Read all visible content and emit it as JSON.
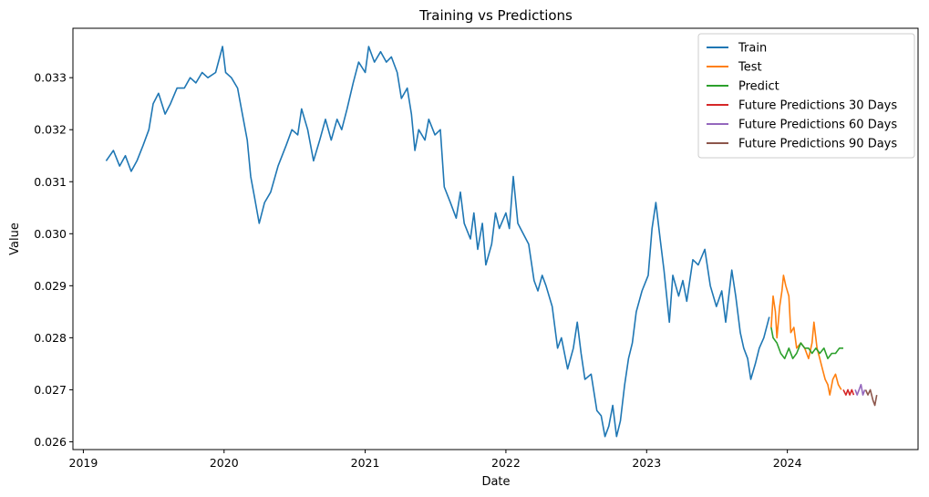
{
  "chart_data": {
    "type": "line",
    "title": "Training vs Predictions",
    "xlabel": "Date",
    "ylabel": "Value",
    "x_range": [
      "2018-12-05",
      "2024-12-05"
    ],
    "ylim": [
      0.02585,
      0.03395
    ],
    "x_ticks": [
      "2019",
      "2020",
      "2021",
      "2022",
      "2023",
      "2024"
    ],
    "y_ticks": [
      "0.026",
      "0.027",
      "0.028",
      "0.029",
      "0.030",
      "0.031",
      "0.032",
      "0.033"
    ],
    "grid": false,
    "legend_position": "top-right",
    "series": [
      {
        "name": "Train",
        "color": "#1f77b4",
        "points": [
          [
            "2019-03-01",
            0.0314
          ],
          [
            "2019-03-20",
            0.0316
          ],
          [
            "2019-04-05",
            0.0313
          ],
          [
            "2019-04-20",
            0.0315
          ],
          [
            "2019-05-05",
            0.0312
          ],
          [
            "2019-05-20",
            0.0314
          ],
          [
            "2019-06-05",
            0.0317
          ],
          [
            "2019-06-20",
            0.032
          ],
          [
            "2019-07-01",
            0.0325
          ],
          [
            "2019-07-15",
            0.0327
          ],
          [
            "2019-08-01",
            0.0323
          ],
          [
            "2019-08-15",
            0.0325
          ],
          [
            "2019-09-01",
            0.0328
          ],
          [
            "2019-09-20",
            0.0328
          ],
          [
            "2019-10-05",
            0.033
          ],
          [
            "2019-10-20",
            0.0329
          ],
          [
            "2019-11-05",
            0.0331
          ],
          [
            "2019-11-20",
            0.033
          ],
          [
            "2019-12-10",
            0.0331
          ],
          [
            "2019-12-28",
            0.0336
          ],
          [
            "2020-01-05",
            0.0331
          ],
          [
            "2020-01-20",
            0.033
          ],
          [
            "2020-02-05",
            0.0328
          ],
          [
            "2020-02-15",
            0.0324
          ],
          [
            "2020-03-01",
            0.0318
          ],
          [
            "2020-03-10",
            0.0311
          ],
          [
            "2020-03-20",
            0.0307
          ],
          [
            "2020-04-01",
            0.0302
          ],
          [
            "2020-04-15",
            0.0306
          ],
          [
            "2020-05-01",
            0.0308
          ],
          [
            "2020-05-20",
            0.0313
          ],
          [
            "2020-06-10",
            0.0317
          ],
          [
            "2020-06-25",
            0.032
          ],
          [
            "2020-07-10",
            0.0319
          ],
          [
            "2020-07-20",
            0.0324
          ],
          [
            "2020-08-05",
            0.032
          ],
          [
            "2020-08-20",
            0.0314
          ],
          [
            "2020-09-05",
            0.0318
          ],
          [
            "2020-09-20",
            0.0322
          ],
          [
            "2020-10-05",
            0.0318
          ],
          [
            "2020-10-20",
            0.0322
          ],
          [
            "2020-11-01",
            0.032
          ],
          [
            "2020-11-15",
            0.0324
          ],
          [
            "2020-12-01",
            0.0329
          ],
          [
            "2020-12-15",
            0.0333
          ],
          [
            "2021-01-01",
            0.0331
          ],
          [
            "2021-01-10",
            0.0336
          ],
          [
            "2021-01-25",
            0.0333
          ],
          [
            "2021-02-10",
            0.0335
          ],
          [
            "2021-02-25",
            0.0333
          ],
          [
            "2021-03-10",
            0.0334
          ],
          [
            "2021-03-25",
            0.0331
          ],
          [
            "2021-04-05",
            0.0326
          ],
          [
            "2021-04-20",
            0.0328
          ],
          [
            "2021-05-01",
            0.0323
          ],
          [
            "2021-05-10",
            0.0316
          ],
          [
            "2021-05-20",
            0.032
          ],
          [
            "2021-06-05",
            0.0318
          ],
          [
            "2021-06-15",
            0.0322
          ],
          [
            "2021-07-01",
            0.0319
          ],
          [
            "2021-07-15",
            0.032
          ],
          [
            "2021-07-25",
            0.0309
          ],
          [
            "2021-08-10",
            0.0306
          ],
          [
            "2021-08-25",
            0.0303
          ],
          [
            "2021-09-05",
            0.0308
          ],
          [
            "2021-09-15",
            0.0302
          ],
          [
            "2021-10-01",
            0.0299
          ],
          [
            "2021-10-10",
            0.0304
          ],
          [
            "2021-10-20",
            0.0297
          ],
          [
            "2021-11-01",
            0.0302
          ],
          [
            "2021-11-10",
            0.0294
          ],
          [
            "2021-11-25",
            0.0298
          ],
          [
            "2021-12-05",
            0.0304
          ],
          [
            "2021-12-15",
            0.0301
          ],
          [
            "2022-01-01",
            0.0304
          ],
          [
            "2022-01-10",
            0.0301
          ],
          [
            "2022-01-20",
            0.0311
          ],
          [
            "2022-02-01",
            0.0302
          ],
          [
            "2022-02-15",
            0.03
          ],
          [
            "2022-03-01",
            0.0298
          ],
          [
            "2022-03-15",
            0.0291
          ],
          [
            "2022-03-25",
            0.0289
          ],
          [
            "2022-04-05",
            0.0292
          ],
          [
            "2022-04-15",
            0.029
          ],
          [
            "2022-05-01",
            0.0286
          ],
          [
            "2022-05-15",
            0.0278
          ],
          [
            "2022-05-25",
            0.028
          ],
          [
            "2022-06-10",
            0.0274
          ],
          [
            "2022-06-25",
            0.0278
          ],
          [
            "2022-07-05",
            0.0283
          ],
          [
            "2022-07-15",
            0.0277
          ],
          [
            "2022-07-25",
            0.0272
          ],
          [
            "2022-08-10",
            0.0273
          ],
          [
            "2022-08-25",
            0.0266
          ],
          [
            "2022-09-05",
            0.0265
          ],
          [
            "2022-09-15",
            0.0261
          ],
          [
            "2022-09-25",
            0.0263
          ],
          [
            "2022-10-05",
            0.0267
          ],
          [
            "2022-10-15",
            0.0261
          ],
          [
            "2022-10-25",
            0.0264
          ],
          [
            "2022-11-05",
            0.0271
          ],
          [
            "2022-11-15",
            0.0276
          ],
          [
            "2022-11-25",
            0.0279
          ],
          [
            "2022-12-05",
            0.0285
          ],
          [
            "2022-12-20",
            0.0289
          ],
          [
            "2023-01-05",
            0.0292
          ],
          [
            "2023-01-15",
            0.0301
          ],
          [
            "2023-01-25",
            0.0306
          ],
          [
            "2023-02-05",
            0.0299
          ],
          [
            "2023-02-15",
            0.0293
          ],
          [
            "2023-03-01",
            0.0283
          ],
          [
            "2023-03-10",
            0.0292
          ],
          [
            "2023-03-25",
            0.0288
          ],
          [
            "2023-04-05",
            0.0291
          ],
          [
            "2023-04-15",
            0.0287
          ],
          [
            "2023-05-01",
            0.0295
          ],
          [
            "2023-05-15",
            0.0294
          ],
          [
            "2023-06-01",
            0.0297
          ],
          [
            "2023-06-15",
            0.029
          ],
          [
            "2023-07-01",
            0.0286
          ],
          [
            "2023-07-15",
            0.0289
          ],
          [
            "2023-07-25",
            0.0283
          ],
          [
            "2023-08-10",
            0.0293
          ],
          [
            "2023-08-20",
            0.0288
          ],
          [
            "2023-09-01",
            0.0281
          ],
          [
            "2023-09-10",
            0.0278
          ],
          [
            "2023-09-20",
            0.0276
          ],
          [
            "2023-09-28",
            0.0272
          ],
          [
            "2023-10-10",
            0.0275
          ],
          [
            "2023-10-20",
            0.0278
          ],
          [
            "2023-11-01",
            0.028
          ],
          [
            "2023-11-15",
            0.0284
          ]
        ]
      },
      {
        "name": "Test",
        "color": "#ff7f0e",
        "points": [
          [
            "2023-11-20",
            0.0282
          ],
          [
            "2023-11-25",
            0.0288
          ],
          [
            "2023-12-01",
            0.0285
          ],
          [
            "2023-12-05",
            0.028
          ],
          [
            "2023-12-12",
            0.0286
          ],
          [
            "2023-12-18",
            0.0289
          ],
          [
            "2023-12-22",
            0.0292
          ],
          [
            "2023-12-28",
            0.029
          ],
          [
            "2024-01-05",
            0.0288
          ],
          [
            "2024-01-10",
            0.0281
          ],
          [
            "2024-01-18",
            0.0282
          ],
          [
            "2024-01-25",
            0.0278
          ],
          [
            "2024-02-05",
            0.0279
          ],
          [
            "2024-02-15",
            0.0278
          ],
          [
            "2024-02-25",
            0.0276
          ],
          [
            "2024-03-05",
            0.0279
          ],
          [
            "2024-03-10",
            0.0283
          ],
          [
            "2024-03-18",
            0.0278
          ],
          [
            "2024-03-25",
            0.0276
          ],
          [
            "2024-04-01",
            0.0274
          ],
          [
            "2024-04-08",
            0.0272
          ],
          [
            "2024-04-15",
            0.0271
          ],
          [
            "2024-04-20",
            0.0269
          ],
          [
            "2024-04-28",
            0.0272
          ],
          [
            "2024-05-05",
            0.0273
          ],
          [
            "2024-05-12",
            0.0271
          ],
          [
            "2024-05-20",
            0.027
          ]
        ]
      },
      {
        "name": "Predict",
        "color": "#2ca02c",
        "points": [
          [
            "2023-11-20",
            0.0282
          ],
          [
            "2023-11-25",
            0.028
          ],
          [
            "2023-12-05",
            0.0279
          ],
          [
            "2023-12-15",
            0.0277
          ],
          [
            "2023-12-25",
            0.0276
          ],
          [
            "2024-01-05",
            0.0278
          ],
          [
            "2024-01-15",
            0.0276
          ],
          [
            "2024-01-25",
            0.0277
          ],
          [
            "2024-02-05",
            0.0279
          ],
          [
            "2024-02-15",
            0.0278
          ],
          [
            "2024-02-25",
            0.0278
          ],
          [
            "2024-03-05",
            0.0277
          ],
          [
            "2024-03-15",
            0.0278
          ],
          [
            "2024-03-25",
            0.0277
          ],
          [
            "2024-04-05",
            0.0278
          ],
          [
            "2024-04-15",
            0.0276
          ],
          [
            "2024-04-25",
            0.0277
          ],
          [
            "2024-05-05",
            0.0277
          ],
          [
            "2024-05-15",
            0.0278
          ],
          [
            "2024-05-25",
            0.0278
          ]
        ]
      },
      {
        "name": "Future Predictions 30 Days",
        "color": "#d62728",
        "points": [
          [
            "2024-05-25",
            0.027
          ],
          [
            "2024-06-01",
            0.0269
          ],
          [
            "2024-06-06",
            0.027
          ],
          [
            "2024-06-11",
            0.0269
          ],
          [
            "2024-06-16",
            0.027
          ],
          [
            "2024-06-21",
            0.0269
          ]
        ]
      },
      {
        "name": "Future Predictions 60 Days",
        "color": "#9467bd",
        "points": [
          [
            "2024-06-25",
            0.027
          ],
          [
            "2024-06-30",
            0.0269
          ],
          [
            "2024-07-05",
            0.027
          ],
          [
            "2024-07-10",
            0.0271
          ],
          [
            "2024-07-15",
            0.0269
          ],
          [
            "2024-07-20",
            0.027
          ]
        ]
      },
      {
        "name": "Future Predictions 90 Days",
        "color": "#8c564b",
        "points": [
          [
            "2024-07-22",
            0.027
          ],
          [
            "2024-07-28",
            0.0269
          ],
          [
            "2024-08-03",
            0.027
          ],
          [
            "2024-08-10",
            0.0268
          ],
          [
            "2024-08-15",
            0.0267
          ],
          [
            "2024-08-20",
            0.0269
          ]
        ]
      }
    ]
  }
}
